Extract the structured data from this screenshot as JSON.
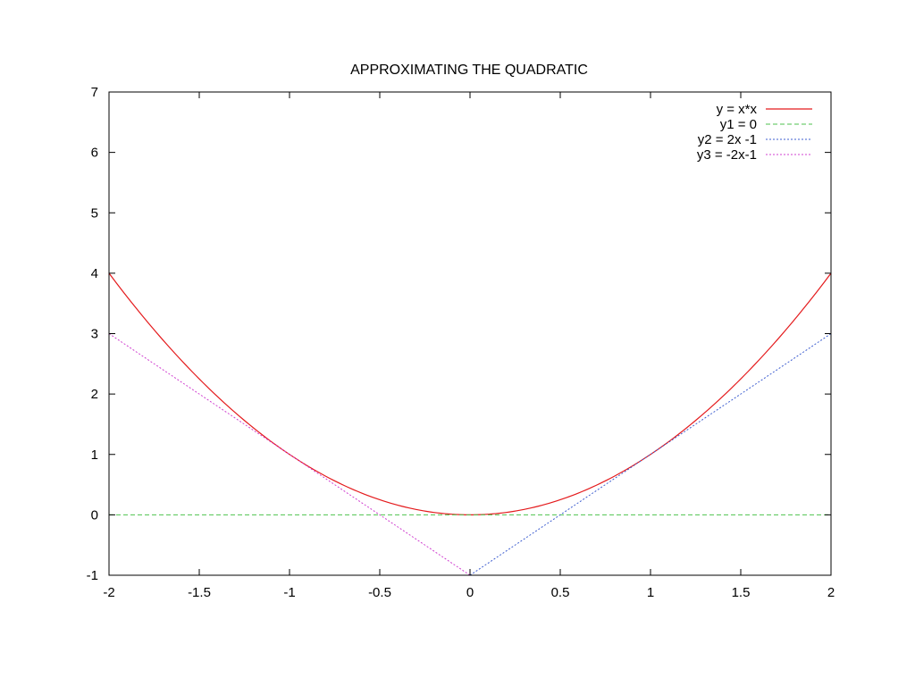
{
  "chart_data": {
    "type": "line",
    "title": "APPROXIMATING THE QUADRATIC",
    "xlabel": "",
    "ylabel": "",
    "xlim": [
      -2,
      2
    ],
    "ylim": [
      -1,
      7
    ],
    "xticks": [
      -2,
      -1.5,
      -1,
      -0.5,
      0,
      0.5,
      1,
      1.5,
      2
    ],
    "xtick_labels": [
      "-2",
      "-1.5",
      "-1",
      "-0.5",
      "0",
      "0.5",
      "1",
      "1.5",
      "2"
    ],
    "yticks": [
      -1,
      0,
      1,
      2,
      3,
      4,
      5,
      6,
      7
    ],
    "ytick_labels": [
      "-1",
      "0",
      "1",
      "2",
      "3",
      "4",
      "5",
      "6",
      "7"
    ],
    "grid": false,
    "legend_position": "top-right",
    "series": [
      {
        "name": "y = x*x",
        "color": "#e41a1c",
        "dash": "solid",
        "x": [
          -2,
          -1.75,
          -1.5,
          -1.25,
          -1,
          -0.75,
          -0.5,
          -0.25,
          0,
          0.25,
          0.5,
          0.75,
          1,
          1.25,
          1.5,
          1.75,
          2
        ],
        "y": [
          4,
          3.0625,
          2.25,
          1.5625,
          1,
          0.5625,
          0.25,
          0.0625,
          0,
          0.0625,
          0.25,
          0.5625,
          1,
          1.5625,
          2.25,
          3.0625,
          4
        ]
      },
      {
        "name": "y1 = 0",
        "color": "#4dc24d",
        "dash": "dashed",
        "x": [
          -2,
          2
        ],
        "y": [
          0,
          0
        ]
      },
      {
        "name": "y2 = 2x -1",
        "color": "#3f5fd0",
        "dash": "dotted",
        "x": [
          0,
          2
        ],
        "y": [
          -1,
          3
        ]
      },
      {
        "name": "y3 = -2x-1",
        "color": "#d040d0",
        "dash": "dotted",
        "x": [
          -2,
          0
        ],
        "y": [
          3,
          -1
        ]
      }
    ]
  }
}
